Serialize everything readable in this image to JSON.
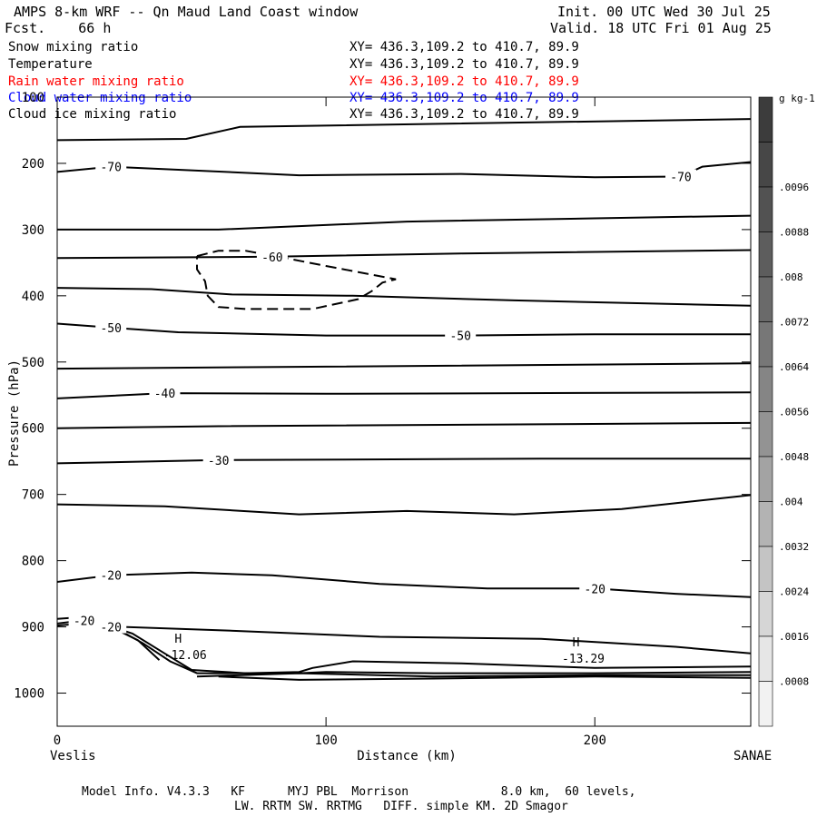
{
  "header": {
    "title": "AMPS 8-km WRF -- Qn Maud Land Coast window",
    "forecast": "Fcst.    66 h",
    "init": "Init. 00 UTC Wed 30 Jul 25",
    "valid": "Valid. 18 UTC Fri 01 Aug 25"
  },
  "fields": [
    {
      "name": "Snow mixing ratio",
      "xy": "XY= 436.3,109.2 to 410.7, 89.9",
      "color": "#000000"
    },
    {
      "name": "Temperature",
      "xy": "XY= 436.3,109.2 to 410.7, 89.9",
      "color": "#000000"
    },
    {
      "name": "Rain water mixing ratio",
      "xy": "XY= 436.3,109.2 to 410.7, 89.9",
      "color": "#ff0000"
    },
    {
      "name": "Cloud water mixing ratio",
      "xy": "XY= 436.3,109.2 to 410.7, 89.9",
      "color": "#0000ff"
    },
    {
      "name": "Cloud ice mixing ratio",
      "xy": "XY= 436.3,109.2 to 410.7, 89.9",
      "color": "#000000"
    }
  ],
  "footer": {
    "line1": "Model Info. V4.3.3   KF      MYJ PBL  Morrison             8.0 km,  60 levels,",
    "line2": "LW. RRTM SW. RRTMG   DIFF. simple KM. 2D Smagor"
  },
  "chart_data": {
    "type": "line",
    "ylabel": "Pressure (hPa)",
    "xlabel": "Distance (km)",
    "left_location": "Veslis",
    "right_location": "SANAE",
    "xlim": [
      0,
      258
    ],
    "ylim": [
      100,
      1050
    ],
    "y_inverted": true,
    "x_ticks": [
      0,
      100,
      200
    ],
    "y_ticks": [
      100,
      200,
      300,
      400,
      500,
      600,
      700,
      800,
      900,
      1000
    ],
    "isotherms": [
      {
        "points": [
          [
            0,
            165
          ],
          [
            48,
            163
          ],
          [
            68,
            145
          ],
          [
            258,
            133
          ]
        ]
      },
      {
        "label": "-70",
        "points": [
          [
            0,
            213
          ],
          [
            20,
            205
          ],
          [
            90,
            218
          ],
          [
            150,
            216
          ],
          [
            200,
            221
          ],
          [
            232,
            220
          ],
          [
            240,
            205
          ],
          [
            258,
            198
          ]
        ]
      },
      {
        "points": [
          [
            0,
            300
          ],
          [
            60,
            300
          ],
          [
            130,
            288
          ],
          [
            200,
            283
          ],
          [
            258,
            279
          ]
        ]
      },
      {
        "label": "-60",
        "points": [
          [
            0,
            343
          ],
          [
            80,
            341
          ],
          [
            150,
            336
          ],
          [
            258,
            331
          ]
        ]
      },
      {
        "points": [
          [
            0,
            388
          ],
          [
            35,
            390
          ],
          [
            65,
            398
          ],
          [
            110,
            400
          ],
          [
            170,
            407
          ],
          [
            258,
            415
          ]
        ]
      },
      {
        "label": "-50",
        "points": [
          [
            0,
            442
          ],
          [
            20,
            448
          ],
          [
            45,
            455
          ],
          [
            100,
            460
          ],
          [
            150,
            460
          ],
          [
            200,
            458
          ],
          [
            258,
            458
          ]
        ]
      },
      {
        "points": [
          [
            0,
            510
          ],
          [
            100,
            507
          ],
          [
            258,
            502
          ]
        ]
      },
      {
        "label": "-40",
        "points": [
          [
            0,
            555
          ],
          [
            40,
            547
          ],
          [
            100,
            548
          ],
          [
            258,
            546
          ]
        ]
      },
      {
        "points": [
          [
            0,
            600
          ],
          [
            60,
            597
          ],
          [
            258,
            592
          ]
        ]
      },
      {
        "label": "-30",
        "points": [
          [
            0,
            653
          ],
          [
            60,
            648
          ],
          [
            180,
            646
          ],
          [
            258,
            646
          ]
        ]
      },
      {
        "points": [
          [
            0,
            715
          ],
          [
            40,
            718
          ],
          [
            90,
            730
          ],
          [
            130,
            725
          ],
          [
            170,
            730
          ],
          [
            210,
            722
          ],
          [
            258,
            701
          ]
        ]
      },
      {
        "label": "-20",
        "points": [
          [
            0,
            832
          ],
          [
            20,
            822
          ],
          [
            50,
            818
          ],
          [
            80,
            822
          ],
          [
            120,
            835
          ],
          [
            160,
            842
          ],
          [
            200,
            842
          ],
          [
            230,
            850
          ],
          [
            258,
            855
          ]
        ]
      },
      {
        "points": [
          [
            25,
            908
          ],
          [
            25,
            900
          ],
          [
            60,
            905
          ],
          [
            120,
            915
          ],
          [
            180,
            918
          ],
          [
            230,
            930
          ],
          [
            258,
            940
          ]
        ]
      },
      {
        "label": "-20",
        "points": [
          [
            0,
            895
          ],
          [
            10,
            890
          ],
          [
            20,
            900
          ],
          [
            30,
            920
          ],
          [
            38,
            950
          ]
        ]
      },
      {
        "points": [
          [
            0,
            888
          ],
          [
            10,
            885
          ],
          [
            20,
            898
          ],
          [
            32,
            925
          ],
          [
            42,
            952
          ],
          [
            52,
            970
          ],
          [
            70,
            970
          ],
          [
            90,
            968
          ],
          [
            95,
            962
          ],
          [
            110,
            952
          ],
          [
            150,
            955
          ],
          [
            200,
            962
          ],
          [
            258,
            960
          ]
        ]
      },
      {
        "points": [
          [
            0,
            898
          ],
          [
            15,
            893
          ],
          [
            28,
            910
          ],
          [
            40,
            940
          ],
          [
            50,
            965
          ],
          [
            70,
            970
          ],
          [
            90,
            970
          ],
          [
            100,
            968
          ],
          [
            140,
            970
          ],
          [
            200,
            970
          ],
          [
            258,
            968
          ]
        ]
      },
      {
        "points": [
          [
            52,
            975
          ],
          [
            90,
            970
          ],
          [
            140,
            975
          ],
          [
            200,
            973
          ],
          [
            258,
            973
          ]
        ]
      },
      {
        "points": [
          [
            60,
            975
          ],
          [
            90,
            980
          ],
          [
            140,
            978
          ],
          [
            200,
            975
          ],
          [
            258,
            977
          ]
        ]
      }
    ],
    "snow_contour": {
      "points": [
        [
          52,
          340
        ],
        [
          60,
          332
        ],
        [
          70,
          332
        ],
        [
          85,
          343
        ],
        [
          100,
          355
        ],
        [
          126,
          375
        ],
        [
          121,
          380
        ],
        [
          117,
          393
        ],
        [
          112,
          405
        ],
        [
          95,
          420
        ],
        [
          70,
          420
        ],
        [
          60,
          417
        ],
        [
          56,
          400
        ],
        [
          55,
          378
        ],
        [
          52,
          360
        ],
        [
          52,
          340
        ]
      ]
    },
    "highs": [
      {
        "label": "H",
        "value": "-12.06",
        "x": 45,
        "p": 935
      },
      {
        "label": "H",
        "value": "-13.29",
        "x": 193,
        "p": 940
      }
    ],
    "colorbar": {
      "unit": "g kg-1",
      "labels": [
        ".0096",
        ".0088",
        ".008",
        ".0072",
        ".0064",
        ".0056",
        ".0048",
        ".004",
        ".0032",
        ".0024",
        ".0016",
        ".0008"
      ],
      "fills": [
        "#3c3c3c",
        "#474747",
        "#525252",
        "#5d5d5d",
        "#6a6a6a",
        "#777777",
        "#858585",
        "#939393",
        "#a3a3a3",
        "#b3b3b3",
        "#c4c4c4",
        "#d6d6d6",
        "#e6e6e6",
        "#f2f2f2"
      ]
    }
  }
}
